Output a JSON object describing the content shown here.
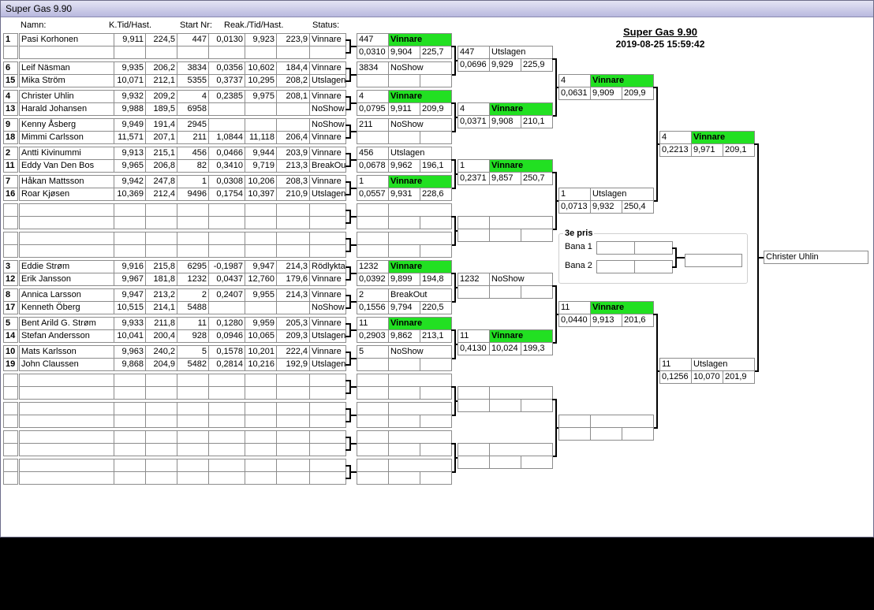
{
  "window_title": "Super Gas 9.90",
  "headers": [
    "Namn:",
    "K.Tid/Hast.",
    "Start Nr:",
    "Reak./Tid/Hast.",
    "Status:"
  ],
  "event": {
    "title": "Super Gas 9.90",
    "datetime": "2019-08-25 15:59:42"
  },
  "heats": [
    [
      [
        "1",
        "Pasi Korhonen",
        "9,911",
        "224,5",
        "447",
        "0,0130",
        "9,923",
        "223,9",
        "Vinnare"
      ],
      null
    ],
    [
      [
        "6",
        "Leif Näsman",
        "9,935",
        "206,2",
        "3834",
        "0,0356",
        "10,602",
        "184,4",
        "Vinnare"
      ],
      [
        "15",
        "Mika Ström",
        "10,071",
        "212,1",
        "5355",
        "0,3737",
        "10,295",
        "208,2",
        "Utslagen"
      ]
    ],
    [
      [
        "4",
        "Christer Uhlin",
        "9,932",
        "209,2",
        "4",
        "0,2385",
        "9,975",
        "208,1",
        "Vinnare"
      ],
      [
        "13",
        "Harald Johansen",
        "9,988",
        "189,5",
        "6958",
        null,
        null,
        null,
        "NoShow"
      ]
    ],
    [
      [
        "9",
        "Kenny Åsberg",
        "9,949",
        "191,4",
        "2945",
        null,
        null,
        null,
        "NoShow"
      ],
      [
        "18",
        "Mimmi Carlsson",
        "11,571",
        "207,1",
        "211",
        "1,0844",
        "11,118",
        "206,4",
        "Vinnare"
      ]
    ],
    [
      [
        "2",
        "Antti Kivinummi",
        "9,913",
        "215,1",
        "456",
        "0,0466",
        "9,944",
        "203,9",
        "Vinnare"
      ],
      [
        "11",
        "Eddy Van Den Bos",
        "9,965",
        "206,8",
        "82",
        "0,3410",
        "9,719",
        "213,3",
        "BreakOut"
      ]
    ],
    [
      [
        "7",
        "Håkan Mattsson",
        "9,942",
        "247,8",
        "1",
        "0,0308",
        "10,206",
        "208,3",
        "Vinnare"
      ],
      [
        "16",
        "Roar Kjøsen",
        "10,369",
        "212,4",
        "9496",
        "0,1754",
        "10,397",
        "210,9",
        "Utslagen"
      ]
    ],
    [
      null,
      null
    ],
    [
      null,
      null
    ],
    [
      [
        "3",
        "Eddie Strøm",
        "9,916",
        "215,8",
        "6295",
        "-0,1987",
        "9,947",
        "214,3",
        "Rödlykta"
      ],
      [
        "12",
        "Erik Jansson",
        "9,967",
        "181,8",
        "1232",
        "0,0437",
        "12,760",
        "179,6",
        "Vinnare"
      ]
    ],
    [
      [
        "8",
        "Annica Larsson",
        "9,947",
        "213,2",
        "2",
        "0,2407",
        "9,955",
        "214,3",
        "Vinnare"
      ],
      [
        "17",
        "Kenneth Öberg",
        "10,515",
        "214,1",
        "5488",
        null,
        null,
        null,
        "NoShow"
      ]
    ],
    [
      [
        "5",
        "Bent Arild G. Strøm",
        "9,933",
        "211,8",
        "11",
        "0,1280",
        "9,959",
        "205,3",
        "Vinnare"
      ],
      [
        "14",
        "Stefan Andersson",
        "10,041",
        "200,4",
        "928",
        "0,0946",
        "10,065",
        "209,3",
        "Utslagen"
      ]
    ],
    [
      [
        "10",
        "Mats Karlsson",
        "9,963",
        "240,2",
        "5",
        "0,1578",
        "10,201",
        "222,4",
        "Vinnare"
      ],
      [
        "19",
        "John Claussen",
        "9,868",
        "204,9",
        "5482",
        "0,2814",
        "10,216",
        "192,9",
        "Utslagen"
      ]
    ],
    [
      null,
      null
    ],
    [
      null,
      null
    ],
    [
      null,
      null
    ],
    [
      null,
      null
    ]
  ],
  "rounds": [
    [
      [
        "447",
        "Vinnare",
        "0,0310",
        "9,904",
        "225,7"
      ],
      [
        "3834",
        "NoShow",
        null,
        null,
        null
      ],
      [
        "4",
        "Vinnare",
        "0,0795",
        "9,911",
        "209,9"
      ],
      [
        "211",
        "NoShow",
        null,
        null,
        null
      ],
      [
        "456",
        "Utslagen",
        "0,0678",
        "9,962",
        "196,1"
      ],
      [
        "1",
        "Vinnare",
        "0,0557",
        "9,931",
        "228,6"
      ],
      null,
      null,
      [
        "1232",
        "Vinnare",
        "0,0392",
        "9,899",
        "194,8"
      ],
      [
        "2",
        "BreakOut",
        "0,1556",
        "9,794",
        "220,5"
      ],
      [
        "11",
        "Vinnare",
        "0,2903",
        "9,862",
        "213,1"
      ],
      [
        "5",
        "NoShow",
        null,
        null,
        null
      ],
      null,
      null,
      null,
      null
    ],
    [
      [
        "447",
        "Utslagen",
        "0,0696",
        "9,929",
        "225,9"
      ],
      [
        "4",
        "Vinnare",
        "0,0371",
        "9,908",
        "210,1"
      ],
      [
        "1",
        "Vinnare",
        "0,2371",
        "9,857",
        "250,7"
      ],
      null,
      [
        "1232",
        "NoShow",
        null,
        null,
        null
      ],
      [
        "11",
        "Vinnare",
        "0,4130",
        "10,024",
        "199,3"
      ],
      null,
      null
    ],
    [
      [
        "4",
        "Vinnare",
        "0,0631",
        "9,909",
        "209,9"
      ],
      [
        "1",
        "Utslagen",
        "0,0713",
        "9,932",
        "250,4"
      ],
      [
        "11",
        "Vinnare",
        "0,0440",
        "9,913",
        "201,6"
      ],
      null
    ],
    [
      [
        "4",
        "Vinnare",
        "0,2213",
        "9,971",
        "209,1"
      ],
      [
        "11",
        "Utslagen",
        "0,1256",
        "10,070",
        "201,9"
      ]
    ]
  ],
  "winner": "Christer Uhlin",
  "third_place": {
    "title": "3e pris",
    "lanes": [
      "Bana 1",
      "Bana 2"
    ]
  }
}
